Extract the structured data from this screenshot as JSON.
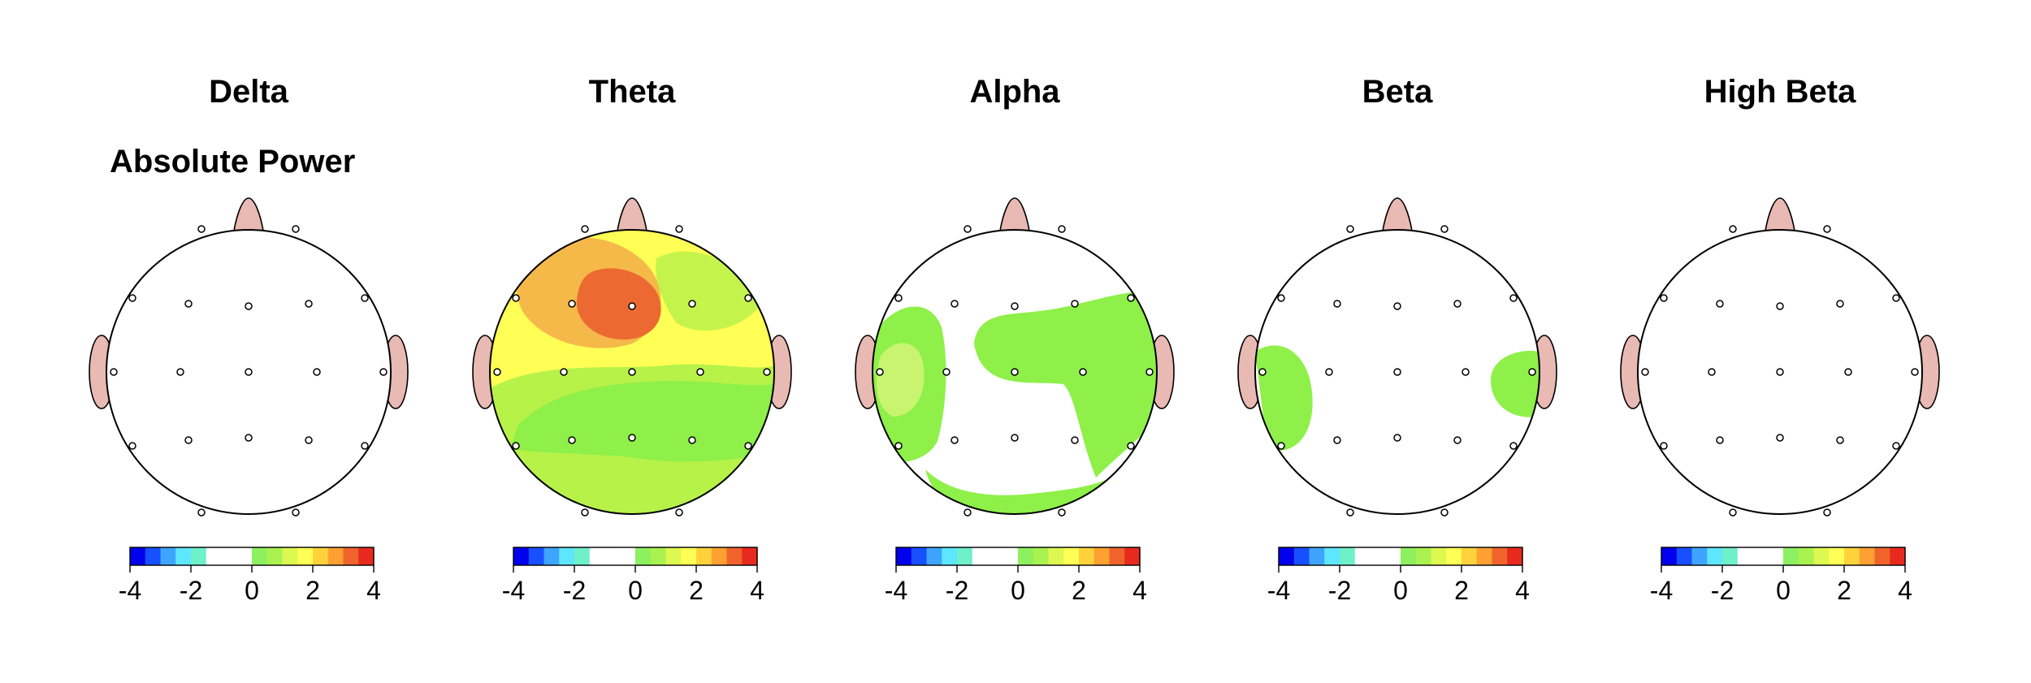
{
  "chart_data": {
    "type": "heatmap",
    "title": "",
    "row_label": "Absolute Power",
    "colorbar": {
      "ticks": [
        "-4",
        "-2",
        "0",
        "2",
        "4"
      ],
      "range": [
        -4,
        4
      ],
      "colors": [
        "#0000ee",
        "#1850ff",
        "#3ea4ff",
        "#5ee6ff",
        "#6ef0c8",
        "#ffffff",
        "#ffffff",
        "#ffffff",
        "#8cf060",
        "#aaf250",
        "#ddf850",
        "#ffff55",
        "#ffd23c",
        "#ffa032",
        "#f0642c",
        "#e82a1e"
      ]
    },
    "electrode_labels_shown": false,
    "panels": [
      {
        "band": "Delta",
        "regions": []
      },
      {
        "band": "Theta",
        "regions": [
          {
            "area": "whole head background",
            "z": 1.5,
            "color": "#ffff55"
          },
          {
            "area": "posterior / occipital",
            "z": 1.0,
            "color": "#b7f249"
          },
          {
            "area": "centro-parietal band",
            "z": 0.8,
            "color": "#8ef048"
          },
          {
            "area": "right frontal",
            "z": 1.0,
            "color": "#c4f44c"
          },
          {
            "area": "left frontal",
            "z": 2.5,
            "color": "#f5b94a"
          },
          {
            "area": "left frontal peak",
            "z": 3.2,
            "color": "#ec6a32"
          }
        ]
      },
      {
        "band": "Alpha",
        "regions": [
          {
            "area": "left temporal",
            "z": 1.0,
            "color": "#8ef048"
          },
          {
            "area": "left temporal core",
            "z": 1.5,
            "color": "#c8f470"
          },
          {
            "area": "central to right temporal",
            "z": 1.0,
            "color": "#8ef048"
          },
          {
            "area": "posterior rim",
            "z": 1.0,
            "color": "#8ef048"
          }
        ]
      },
      {
        "band": "Beta",
        "regions": [
          {
            "area": "left temporal",
            "z": 1.0,
            "color": "#8ef048"
          },
          {
            "area": "right temporal",
            "z": 1.0,
            "color": "#8ef048"
          }
        ]
      },
      {
        "band": "High Beta",
        "regions": []
      }
    ]
  }
}
